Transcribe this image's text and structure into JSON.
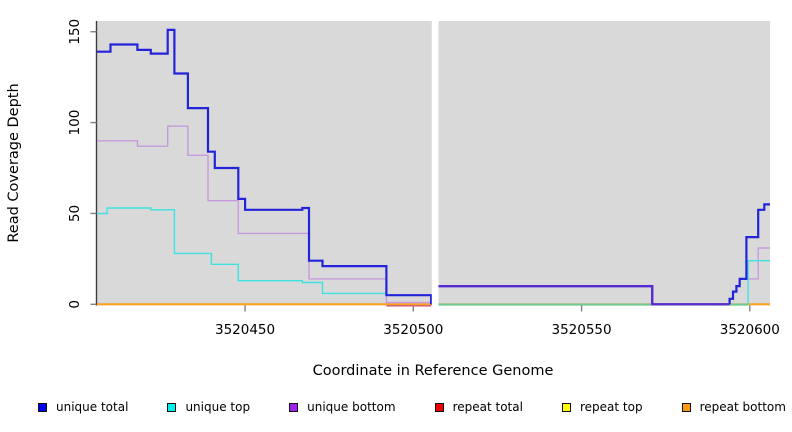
{
  "legend": {
    "items": [
      {
        "label": "unique total",
        "color": "#0000ee"
      },
      {
        "label": "unique top",
        "color": "#00eeee"
      },
      {
        "label": "unique bottom",
        "color": "#a020f0"
      },
      {
        "label": "repeat total",
        "color": "#ee0000"
      },
      {
        "label": "repeat top",
        "color": "#ffff00"
      },
      {
        "label": "repeat bottom",
        "color": "#ff9912"
      }
    ]
  },
  "chart_data": {
    "type": "line",
    "subtype": "step",
    "title": "",
    "xlabel": "Coordinate in Reference Genome",
    "ylabel": "Read Coverage Depth",
    "xlim": [
      3520406,
      3520606
    ],
    "ylim": [
      0,
      155
    ],
    "xticks": [
      3520450,
      3520500,
      3520550,
      3520600
    ],
    "yticks": [
      0,
      50,
      100,
      150
    ],
    "panel_bg": "#d9d9d9",
    "axis_color": "#3c3c3c",
    "tick_color": "#808080",
    "grid": "off",
    "legend_position": "bottom",
    "no_data_gap_x": [
      3520505.5,
      3520507.5
    ],
    "series": [
      {
        "name": "repeat top",
        "line_color": "#ffff00",
        "line_width": 1.3,
        "steps": [
          [
            3520406,
            0
          ],
          [
            3520606,
            0
          ]
        ]
      },
      {
        "name": "repeat total",
        "line_color": "#ee0000",
        "line_width": 1.3,
        "steps": [
          [
            3520406,
            0
          ],
          [
            3520606,
            0
          ]
        ]
      },
      {
        "name": "repeat bottom",
        "line_color": "#ffa019",
        "line_width": 2,
        "steps": [
          [
            3520406,
            0
          ],
          [
            3520505.3,
            0
          ],
          [
            3520506,
            null
          ],
          [
            3520507.5,
            0
          ],
          [
            3520606,
            0
          ]
        ]
      },
      {
        "name": "unique bottom",
        "line_color": "#c79ade",
        "line_width": 1.4,
        "steps": [
          [
            3520406,
            90
          ],
          [
            3520418,
            87
          ],
          [
            3520427,
            98
          ],
          [
            3520433,
            82
          ],
          [
            3520439,
            57
          ],
          [
            3520448,
            39
          ],
          [
            3520469,
            14
          ],
          [
            3520492,
            1
          ],
          [
            3520505.3,
            0
          ],
          [
            3520506,
            null
          ],
          [
            3520507.5,
            10
          ],
          [
            3520571,
            0
          ],
          [
            3520594,
            3
          ],
          [
            3520595,
            7
          ],
          [
            3520596,
            10
          ],
          [
            3520597,
            14
          ],
          [
            3520602.5,
            31
          ],
          [
            3520606,
            31
          ]
        ]
      },
      {
        "name": "unique top",
        "line_color": "#3fe2e2",
        "line_width": 1.4,
        "steps": [
          [
            3520406,
            50
          ],
          [
            3520409,
            53
          ],
          [
            3520422,
            52
          ],
          [
            3520429,
            28
          ],
          [
            3520440,
            22
          ],
          [
            3520448,
            13
          ],
          [
            3520467,
            12
          ],
          [
            3520473,
            6
          ],
          [
            3520492,
            5
          ],
          [
            3520505.3,
            0
          ],
          [
            3520506,
            null
          ],
          [
            3520507.5,
            0
          ],
          [
            3520599.5,
            24
          ],
          [
            3520606,
            24
          ]
        ]
      },
      {
        "name": "unique total",
        "line_color": "#2323da",
        "line_width": 2.2,
        "steps": [
          [
            3520406,
            139
          ],
          [
            3520410,
            143
          ],
          [
            3520418,
            140
          ],
          [
            3520422,
            138
          ],
          [
            3520427,
            151
          ],
          [
            3520429,
            127
          ],
          [
            3520433,
            108
          ],
          [
            3520439,
            84
          ],
          [
            3520441,
            75
          ],
          [
            3520448,
            58
          ],
          [
            3520450,
            52
          ],
          [
            3520467,
            53
          ],
          [
            3520469,
            24
          ],
          [
            3520473,
            21
          ],
          [
            3520492,
            5
          ],
          [
            3520505.3,
            0
          ],
          [
            3520506,
            null
          ],
          [
            3520507.5,
            10
          ],
          [
            3520571,
            0
          ],
          [
            3520594,
            3
          ],
          [
            3520595,
            7
          ],
          [
            3520596,
            10
          ],
          [
            3520597,
            14
          ],
          [
            3520599,
            37
          ],
          [
            3520602.5,
            52
          ],
          [
            3520604.3,
            55
          ],
          [
            3520606,
            55
          ]
        ]
      }
    ],
    "render_overlays": [
      {
        "name": "repeat-total-visible-segment",
        "color": "#d24a6e",
        "width": 1.3,
        "dy": 1.6,
        "points": [
          [
            3520492,
            0
          ],
          [
            3520505.3,
            0
          ]
        ]
      },
      {
        "name": "baseline-blend-green-segment",
        "color": "#7cc57f",
        "width": 1.4,
        "dy": 0.6,
        "points": [
          [
            3520507.5,
            0
          ],
          [
            3520599.5,
            0
          ]
        ]
      },
      {
        "name": "unique-overlap-violet-segment",
        "color": "#5b2ad3",
        "width": 2.2,
        "dy": 0,
        "points": [
          [
            3520507.5,
            10
          ],
          [
            3520571,
            10
          ],
          [
            3520571,
            0
          ],
          [
            3520594,
            0
          ]
        ]
      }
    ]
  }
}
